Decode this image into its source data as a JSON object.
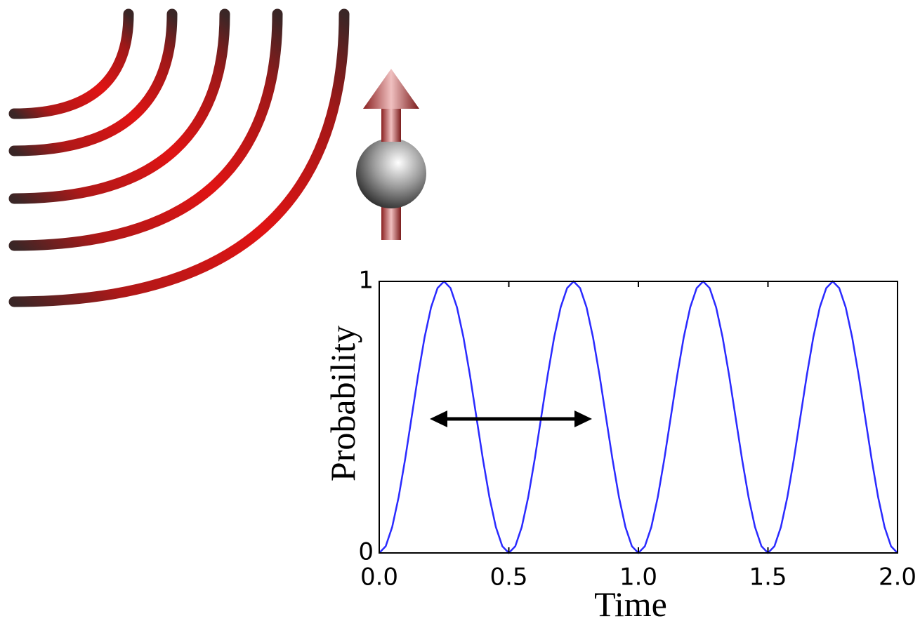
{
  "chart_data": {
    "type": "line",
    "xlabel": "Time",
    "ylabel": "Probability",
    "x": [
      0,
      0.025,
      0.05,
      0.075,
      0.1,
      0.125,
      0.15,
      0.175,
      0.2,
      0.225,
      0.25,
      0.275,
      0.3,
      0.325,
      0.35,
      0.375,
      0.4,
      0.425,
      0.45,
      0.475,
      0.5,
      0.525,
      0.55,
      0.575,
      0.6,
      0.625,
      0.65,
      0.675,
      0.7,
      0.725,
      0.75,
      0.775,
      0.8,
      0.825,
      0.85,
      0.875,
      0.9,
      0.925,
      0.95,
      0.975,
      1,
      1.025,
      1.05,
      1.075,
      1.1,
      1.125,
      1.15,
      1.175,
      1.2,
      1.225,
      1.25,
      1.275,
      1.3,
      1.325,
      1.35,
      1.375,
      1.4,
      1.425,
      1.45,
      1.475,
      1.5,
      1.525,
      1.55,
      1.575,
      1.6,
      1.625,
      1.65,
      1.675,
      1.7,
      1.725,
      1.75,
      1.775,
      1.8,
      1.825,
      1.85,
      1.875,
      1.9,
      1.925,
      1.95,
      1.975,
      2
    ],
    "series": [
      {
        "color": "#2a2aff",
        "values": [
          0,
          0.0245,
          0.0955,
          0.2061,
          0.3455,
          0.5,
          0.6545,
          0.7939,
          0.9045,
          0.9755,
          1,
          0.9755,
          0.9045,
          0.7939,
          0.6545,
          0.5,
          0.3455,
          0.2061,
          0.0955,
          0.0245,
          0,
          0.0245,
          0.0955,
          0.2061,
          0.3455,
          0.5,
          0.6545,
          0.7939,
          0.9045,
          0.9755,
          1,
          0.9755,
          0.9045,
          0.7939,
          0.6545,
          0.5,
          0.3455,
          0.2061,
          0.0955,
          0.0245,
          0,
          0.0245,
          0.0955,
          0.2061,
          0.3455,
          0.5,
          0.6545,
          0.7939,
          0.9045,
          0.9755,
          1,
          0.9755,
          0.9045,
          0.7939,
          0.6545,
          0.5,
          0.3455,
          0.2061,
          0.0955,
          0.0245,
          0,
          0.0245,
          0.0955,
          0.2061,
          0.3455,
          0.5,
          0.6545,
          0.7939,
          0.9045,
          0.9755,
          1,
          0.9755,
          0.9045,
          0.7939,
          0.6545,
          0.5,
          0.3455,
          0.2061,
          0.0955,
          0.0245,
          0
        ]
      }
    ],
    "xlim": [
      0,
      2
    ],
    "ylim": [
      0,
      1
    ],
    "xticks": [
      {
        "value": 0,
        "label": "0.0"
      },
      0.5,
      {
        "value": 1,
        "label": "1.0"
      },
      1.5,
      {
        "value": 2,
        "label": "2.0"
      }
    ],
    "yticks": [
      0,
      1
    ]
  }
}
